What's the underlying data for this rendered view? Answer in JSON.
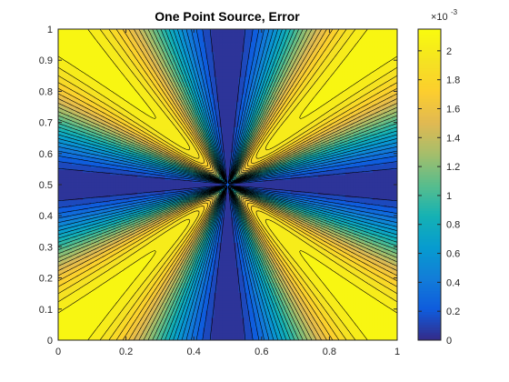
{
  "chart_data": {
    "type": "heatmap",
    "subtype": "filled-contour",
    "title": "One Point Source, Error",
    "xlabel": "",
    "ylabel": "",
    "xlim": [
      0,
      1
    ],
    "ylim": [
      0,
      1
    ],
    "x_ticks": [
      "0",
      "0.2",
      "0.4",
      "0.6",
      "0.8",
      "1"
    ],
    "y_ticks": [
      "0",
      "0.1",
      "0.2",
      "0.3",
      "0.4",
      "0.5",
      "0.6",
      "0.7",
      "0.8",
      "0.9",
      "1"
    ],
    "point_source": [
      0.5,
      0.5
    ],
    "colorbar": {
      "colormap": "parula",
      "clim": [
        0,
        0.00215
      ],
      "exponent_label": "×10^-3",
      "tick_labels": [
        "0",
        "0.2",
        "0.4",
        "0.6",
        "0.8",
        "1",
        "1.2",
        "1.4",
        "1.6",
        "1.8",
        "2"
      ],
      "tick_values": [
        0,
        0.2,
        0.4,
        0.6,
        0.8,
        1.0,
        1.2,
        1.4,
        1.6,
        1.8,
        2.0
      ]
    },
    "value_range": [
      0,
      0.00215
    ],
    "grid": false
  }
}
